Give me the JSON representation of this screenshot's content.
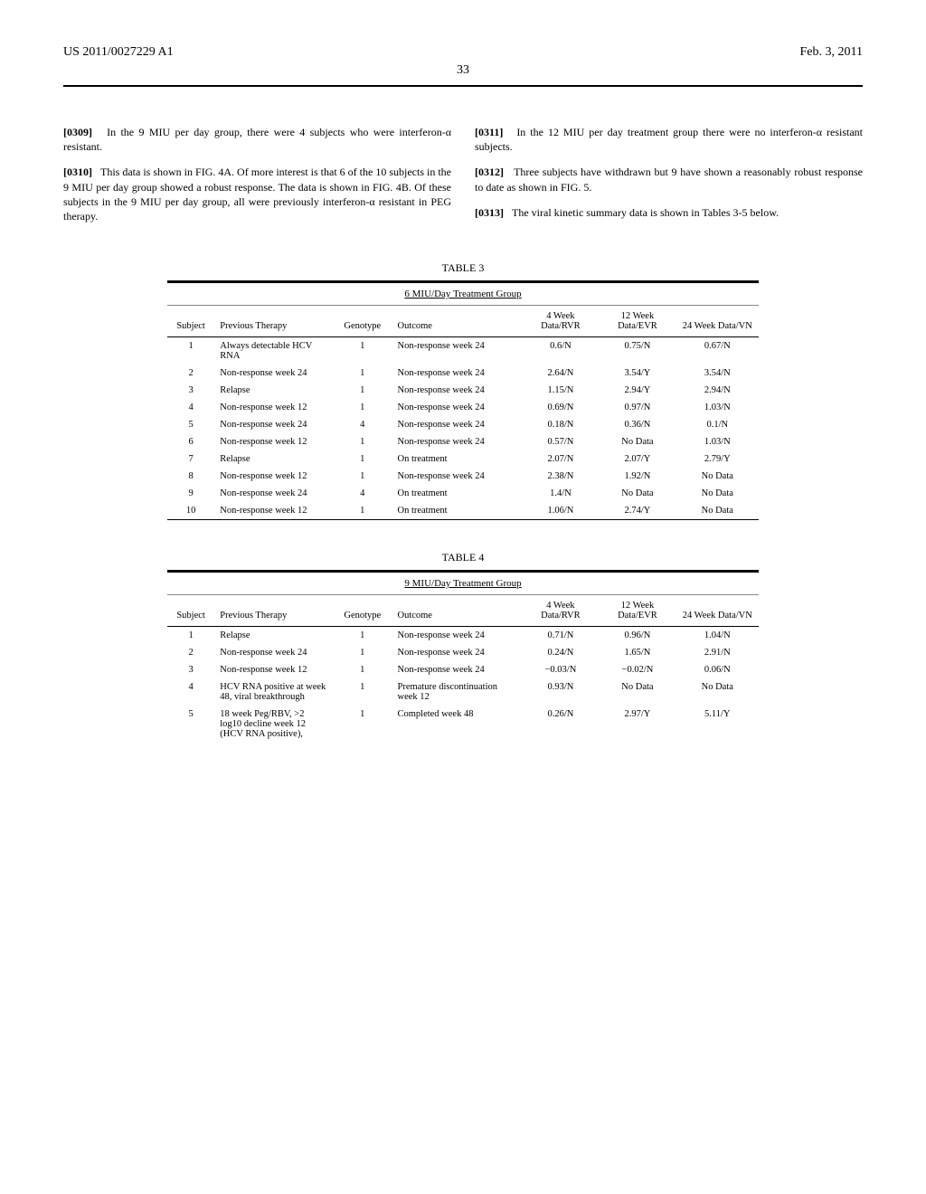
{
  "header": {
    "left": "US 2011/0027229 A1",
    "page_number": "33",
    "date": "Feb. 3, 2011"
  },
  "left_column_paragraphs": [
    {
      "label": "[0309]",
      "text": "In the 9 MIU per day group, there were 4 subjects who were interferon-α resistant."
    },
    {
      "label": "[0310]",
      "text": "This data is shown in FIG. 4A. Of more interest is that 6 of the 10 subjects in the 9 MIU per day group showed a robust response. The data is shown in FIG. 4B. Of these subjects in the 9 MIU per day group, all were previously interferon-α resistant in PEG therapy."
    }
  ],
  "right_column_paragraphs": [
    {
      "label": "[0311]",
      "text": "In the 12 MIU per day treatment group there were no interferon-α resistant subjects."
    },
    {
      "label": "[0312]",
      "text": "Three subjects have withdrawn but 9 have shown a reasonably robust response to date as shown in FIG. 5."
    },
    {
      "label": "[0313]",
      "text": "The viral kinetic summary data is shown in Tables 3-5 below."
    }
  ],
  "table3": {
    "caption": "TABLE 3",
    "title": "6 MIU/Day Treatment Group",
    "headers": [
      "Subject",
      "Previous Therapy",
      "Genotype",
      "Outcome",
      "4 Week Data/RVR",
      "12 Week Data/EVR",
      "24 Week Data/VN"
    ],
    "rows": [
      [
        "1",
        "Always detectable HCV RNA",
        "1",
        "Non-response week 24",
        "0.6/N",
        "0.75/N",
        "0.67/N"
      ],
      [
        "2",
        "Non-response week 24",
        "1",
        "Non-response week 24",
        "2.64/N",
        "3.54/Y",
        "3.54/N"
      ],
      [
        "3",
        "Relapse",
        "1",
        "Non-response week 24",
        "1.15/N",
        "2.94/Y",
        "2.94/N"
      ],
      [
        "4",
        "Non-response week 12",
        "1",
        "Non-response week 24",
        "0.69/N",
        "0.97/N",
        "1.03/N"
      ],
      [
        "5",
        "Non-response week 24",
        "4",
        "Non-response week 24",
        "0.18/N",
        "0.36/N",
        "0.1/N"
      ],
      [
        "6",
        "Non-response week 12",
        "1",
        "Non-response week 24",
        "0.57/N",
        "No Data",
        "1.03/N"
      ],
      [
        "7",
        "Relapse",
        "1",
        "On treatment",
        "2.07/N",
        "2.07/Y",
        "2.79/Y"
      ],
      [
        "8",
        "Non-response week 12",
        "1",
        "Non-response week 24",
        "2.38/N",
        "1.92/N",
        "No Data"
      ],
      [
        "9",
        "Non-response week 24",
        "4",
        "On treatment",
        "1.4/N",
        "No Data",
        "No Data"
      ],
      [
        "10",
        "Non-response week 12",
        "1",
        "On treatment",
        "1.06/N",
        "2.74/Y",
        "No Data"
      ]
    ]
  },
  "table4": {
    "caption": "TABLE 4",
    "title": "9 MIU/Day Treatment Group",
    "headers": [
      "Subject",
      "Previous Therapy",
      "Genotype",
      "Outcome",
      "4 Week Data/RVR",
      "12 Week Data/EVR",
      "24 Week Data/VN"
    ],
    "rows": [
      [
        "1",
        "Relapse",
        "1",
        "Non-response week 24",
        "0.71/N",
        "0.96/N",
        "1.04/N"
      ],
      [
        "2",
        "Non-response week 24",
        "1",
        "Non-response week 24",
        "0.24/N",
        "1.65/N",
        "2.91/N"
      ],
      [
        "3",
        "Non-response week 12",
        "1",
        "Non-response week 24",
        "−0.03/N",
        "−0.02/N",
        "0.06/N"
      ],
      [
        "4",
        "HCV RNA positive at week 48, viral breakthrough",
        "1",
        "Premature discontinuation week 12",
        "0.93/N",
        "No Data",
        "No Data"
      ],
      [
        "5",
        "18 week Peg/RBV, >2 log10 decline week 12 (HCV RNA positive),",
        "1",
        "Completed week 48",
        "0.26/N",
        "2.97/Y",
        "5.11/Y"
      ]
    ]
  }
}
